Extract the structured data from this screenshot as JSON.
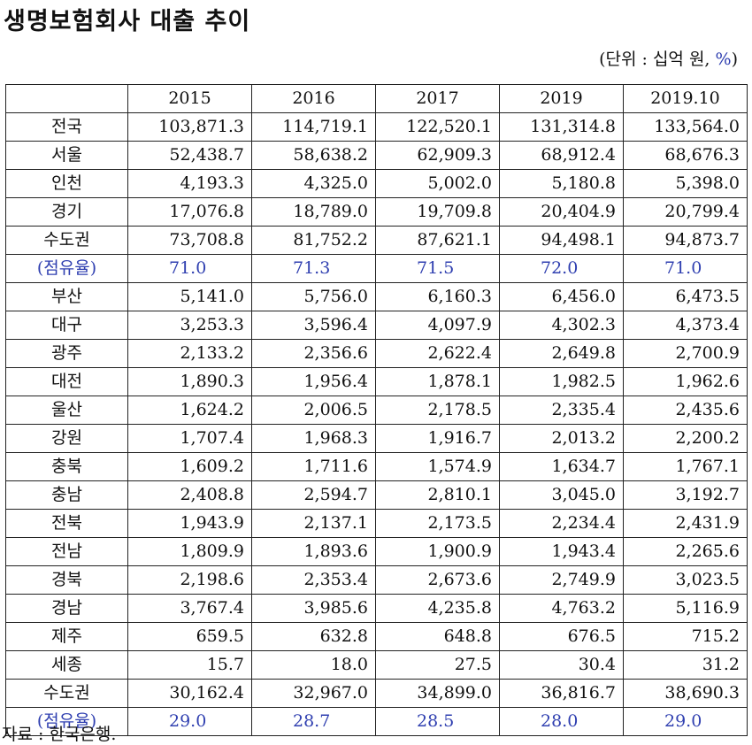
{
  "title": "생명보험회사 대출 추이",
  "unit_note": {
    "prefix": "(단위 : 십억 원, ",
    "pct": "%",
    "suffix": ")"
  },
  "table": {
    "header": [
      "",
      "2015",
      "2016",
      "2017",
      "2019",
      "2019.10"
    ],
    "rows": [
      {
        "label": "전국",
        "values": [
          "103,871.3",
          "114,719.1",
          "122,520.1",
          "131,314.8",
          "133,564.0"
        ],
        "share": false
      },
      {
        "label": "서울",
        "values": [
          "52,438.7",
          "58,638.2",
          "62,909.3",
          "68,912.4",
          "68,676.3"
        ],
        "share": false
      },
      {
        "label": "인천",
        "values": [
          "4,193.3",
          "4,325.0",
          "5,002.0",
          "5,180.8",
          "5,398.0"
        ],
        "share": false
      },
      {
        "label": "경기",
        "values": [
          "17,076.8",
          "18,789.0",
          "19,709.8",
          "20,404.9",
          "20,799.4"
        ],
        "share": false
      },
      {
        "label": "수도권",
        "values": [
          "73,708.8",
          "81,752.2",
          "87,621.1",
          "94,498.1",
          "94,873.7"
        ],
        "share": false
      },
      {
        "label": "(점유율)",
        "values": [
          "71.0",
          "71.3",
          "71.5",
          "72.0",
          "71.0"
        ],
        "share": true
      },
      {
        "label": "부산",
        "values": [
          "5,141.0",
          "5,756.0",
          "6,160.3",
          "6,456.0",
          "6,473.5"
        ],
        "share": false
      },
      {
        "label": "대구",
        "values": [
          "3,253.3",
          "3,596.4",
          "4,097.9",
          "4,302.3",
          "4,373.4"
        ],
        "share": false
      },
      {
        "label": "광주",
        "values": [
          "2,133.2",
          "2,356.6",
          "2,622.4",
          "2,649.8",
          "2,700.9"
        ],
        "share": false
      },
      {
        "label": "대전",
        "values": [
          "1,890.3",
          "1,956.4",
          "1,878.1",
          "1,982.5",
          "1,962.6"
        ],
        "share": false
      },
      {
        "label": "울산",
        "values": [
          "1,624.2",
          "2,006.5",
          "2,178.5",
          "2,335.4",
          "2,435.6"
        ],
        "share": false
      },
      {
        "label": "강원",
        "values": [
          "1,707.4",
          "1,968.3",
          "1,916.7",
          "2,013.2",
          "2,200.2"
        ],
        "share": false
      },
      {
        "label": "충북",
        "values": [
          "1,609.2",
          "1,711.6",
          "1,574.9",
          "1,634.7",
          "1,767.1"
        ],
        "share": false
      },
      {
        "label": "충남",
        "values": [
          "2,408.8",
          "2,594.7",
          "2,810.1",
          "3,045.0",
          "3,192.7"
        ],
        "share": false
      },
      {
        "label": "전북",
        "values": [
          "1,943.9",
          "2,137.1",
          "2,173.5",
          "2,234.4",
          "2,431.9"
        ],
        "share": false
      },
      {
        "label": "전남",
        "values": [
          "1,809.9",
          "1,893.6",
          "1,900.9",
          "1,943.4",
          "2,265.6"
        ],
        "share": false
      },
      {
        "label": "경북",
        "values": [
          "2,198.6",
          "2,353.4",
          "2,673.6",
          "2,749.9",
          "3,023.5"
        ],
        "share": false
      },
      {
        "label": "경남",
        "values": [
          "3,767.4",
          "3,985.6",
          "4,235.8",
          "4,763.2",
          "5,116.9"
        ],
        "share": false
      },
      {
        "label": "제주",
        "values": [
          "659.5",
          "632.8",
          "648.8",
          "676.5",
          "715.2"
        ],
        "share": false
      },
      {
        "label": "세종",
        "values": [
          "15.7",
          "18.0",
          "27.5",
          "30.4",
          "31.2"
        ],
        "share": false
      },
      {
        "label": "수도권",
        "values": [
          "30,162.4",
          "32,967.0",
          "34,899.0",
          "36,816.7",
          "38,690.3"
        ],
        "share": false
      },
      {
        "label": "(점유율)",
        "values": [
          "29.0",
          "28.7",
          "28.5",
          "28.0",
          "29.0"
        ],
        "share": true
      }
    ]
  },
  "source": "자료 : 한국은행.",
  "colors": {
    "share_text": "#2f3fb0",
    "text": "#111111",
    "border": "#222222"
  }
}
